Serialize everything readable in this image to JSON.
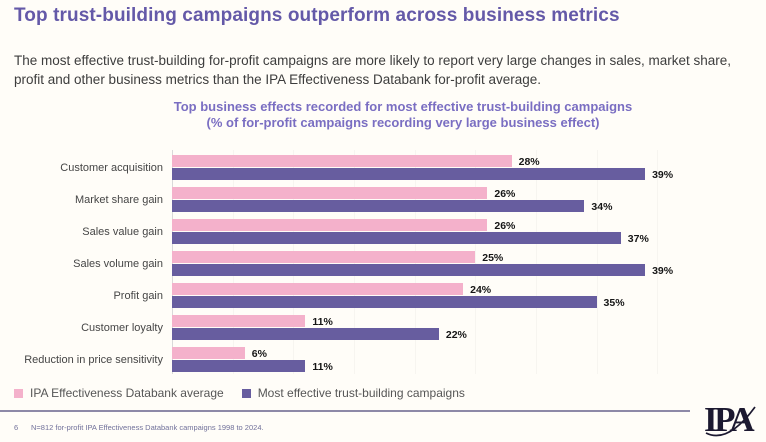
{
  "page": {
    "title": "Top trust-building campaigns outperform across business metrics",
    "subtitle": "The most effective trust-building for-profit campaigns are more likely to report very large changes in sales, market share, profit and other business metrics than the IPA Effectiveness Databank for-profit average.",
    "page_number": "6",
    "footnote": "N=812 for-profit IPA Effectiveness Databank campaigns 1998 to 2024.",
    "logo_text": "IPA"
  },
  "chart_data": {
    "type": "bar",
    "orientation": "horizontal",
    "title": "Top business effects recorded for most effective trust-building campaigns",
    "subtitle": "(% of for-profit campaigns recording very large business effect)",
    "categories": [
      "Customer acquisition",
      "Market share gain",
      "Sales value gain",
      "Sales volume gain",
      "Profit gain",
      "Customer loyalty",
      "Reduction in price sensitivity"
    ],
    "series": [
      {
        "name": "IPA Effectiveness Databank average",
        "color": "#f4b1cb",
        "values": [
          28,
          26,
          26,
          25,
          24,
          11,
          6
        ]
      },
      {
        "name": "Most effective trust-building campaigns",
        "color": "#675d9f",
        "values": [
          39,
          34,
          37,
          39,
          35,
          22,
          11
        ]
      }
    ],
    "value_suffix": "%",
    "xlim": [
      0,
      41
    ],
    "grid": false,
    "legend_position": "bottom",
    "data_labels": true
  },
  "colors": {
    "title_purple": "#6459a8",
    "chart_title_purple": "#7a6ec2",
    "body_text": "#3d3d3d",
    "pink": "#f4b1cb",
    "purple": "#675d9f",
    "divider": "#8d89a7",
    "footer_text": "#71719a",
    "logo_ink": "#1c1930"
  }
}
